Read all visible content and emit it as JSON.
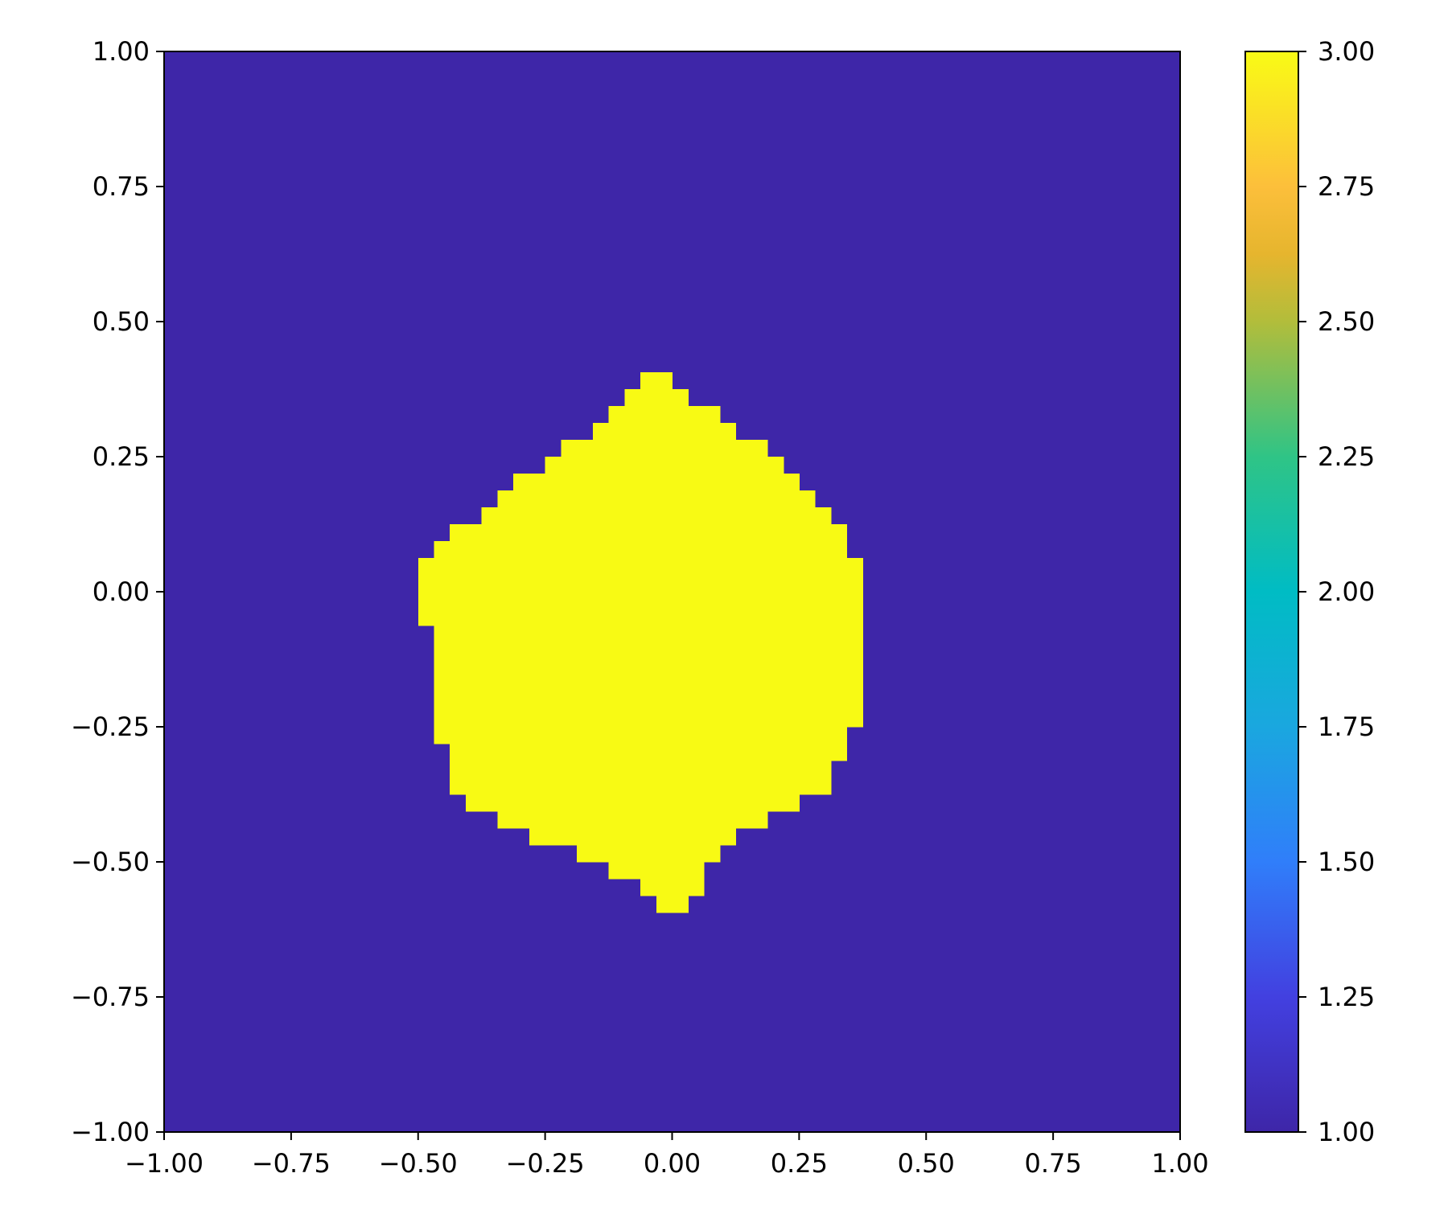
{
  "chart_data": {
    "type": "heatmap",
    "title": "",
    "xlabel": "",
    "ylabel": "",
    "xlim": [
      -1.0,
      1.0
    ],
    "ylim": [
      -1.0,
      1.0
    ],
    "grid": false,
    "legend": "none",
    "x_ticks": [
      "−1.00",
      "−0.75",
      "−0.50",
      "−0.25",
      "0.00",
      "0.25",
      "0.50",
      "0.75",
      "1.00"
    ],
    "x_tick_values": [
      -1.0,
      -0.75,
      -0.5,
      -0.25,
      0.0,
      0.25,
      0.5,
      0.75,
      1.0
    ],
    "y_ticks": [
      "1.00",
      "0.75",
      "0.50",
      "0.25",
      "0.00",
      "−0.25",
      "−0.50",
      "−0.75",
      "−1.00"
    ],
    "y_tick_values": [
      1.0,
      0.75,
      0.5,
      0.25,
      0.0,
      -0.25,
      -0.5,
      -0.75,
      -1.0
    ],
    "background_value": 1.0,
    "region_value": 3.0,
    "region_rows": [
      {
        "y0": 0.375,
        "y1": 0.4062,
        "x0": -0.0625,
        "x1": -0.0
      },
      {
        "y0": 0.3438,
        "y1": 0.375,
        "x0": -0.0938,
        "x1": 0.0312
      },
      {
        "y0": 0.3125,
        "y1": 0.3438,
        "x0": -0.125,
        "x1": 0.0938
      },
      {
        "y0": 0.2812,
        "y1": 0.3125,
        "x0": -0.1562,
        "x1": 0.125
      },
      {
        "y0": 0.25,
        "y1": 0.2812,
        "x0": -0.2188,
        "x1": 0.1875
      },
      {
        "y0": 0.2188,
        "y1": 0.25,
        "x0": -0.25,
        "x1": 0.2188
      },
      {
        "y0": 0.1875,
        "y1": 0.2188,
        "x0": -0.3125,
        "x1": 0.25
      },
      {
        "y0": 0.1562,
        "y1": 0.1875,
        "x0": -0.3438,
        "x1": 0.2812
      },
      {
        "y0": 0.125,
        "y1": 0.1562,
        "x0": -0.375,
        "x1": 0.3125
      },
      {
        "y0": 0.0938,
        "y1": 0.125,
        "x0": -0.4375,
        "x1": 0.3438
      },
      {
        "y0": 0.0625,
        "y1": 0.0938,
        "x0": -0.4688,
        "x1": 0.3438
      },
      {
        "y0": -0.0625,
        "y1": 0.0625,
        "x0": -0.5,
        "x1": 0.375
      },
      {
        "y0": -0.25,
        "y1": -0.0625,
        "x0": -0.4688,
        "x1": 0.375
      },
      {
        "y0": -0.2812,
        "y1": -0.25,
        "x0": -0.4688,
        "x1": 0.3438
      },
      {
        "y0": -0.3125,
        "y1": -0.2812,
        "x0": -0.4375,
        "x1": 0.3438
      },
      {
        "y0": -0.375,
        "y1": -0.3125,
        "x0": -0.4375,
        "x1": 0.3125
      },
      {
        "y0": -0.4062,
        "y1": -0.375,
        "x0": -0.4062,
        "x1": 0.25
      },
      {
        "y0": -0.4375,
        "y1": -0.4062,
        "x0": -0.3438,
        "x1": 0.1875
      },
      {
        "y0": -0.4688,
        "y1": -0.4375,
        "x0": -0.2812,
        "x1": 0.125
      },
      {
        "y0": -0.5,
        "y1": -0.4688,
        "x0": -0.1875,
        "x1": 0.0938
      },
      {
        "y0": -0.5312,
        "y1": -0.5,
        "x0": -0.125,
        "x1": 0.0625
      },
      {
        "y0": -0.5625,
        "y1": -0.5312,
        "x0": -0.0625,
        "x1": 0.0625
      },
      {
        "y0": -0.5938,
        "y1": -0.5625,
        "x0": -0.0312,
        "x1": 0.0312
      }
    ],
    "colorbar": {
      "min": 1.0,
      "max": 3.0,
      "ticks": [
        "1.00",
        "1.25",
        "1.50",
        "1.75",
        "2.00",
        "2.25",
        "2.50",
        "2.75",
        "3.00"
      ],
      "tick_values": [
        1.0,
        1.25,
        1.5,
        1.75,
        2.0,
        2.25,
        2.5,
        2.75,
        3.0
      ],
      "stops": [
        {
          "value": 1.0,
          "color": "#3e26a8"
        },
        {
          "value": 1.25,
          "color": "#4240e0"
        },
        {
          "value": 1.5,
          "color": "#307efa"
        },
        {
          "value": 1.75,
          "color": "#1aa7df"
        },
        {
          "value": 2.0,
          "color": "#00bcc4"
        },
        {
          "value": 2.25,
          "color": "#2fc486"
        },
        {
          "value": 2.5,
          "color": "#b2bd3b"
        },
        {
          "value": 2.625,
          "color": "#e6b52e"
        },
        {
          "value": 2.75,
          "color": "#fcbf3b"
        },
        {
          "value": 3.0,
          "color": "#f9fb15"
        }
      ]
    },
    "colors": {
      "background": "#3e26a8",
      "region": "#f8fa14"
    }
  }
}
